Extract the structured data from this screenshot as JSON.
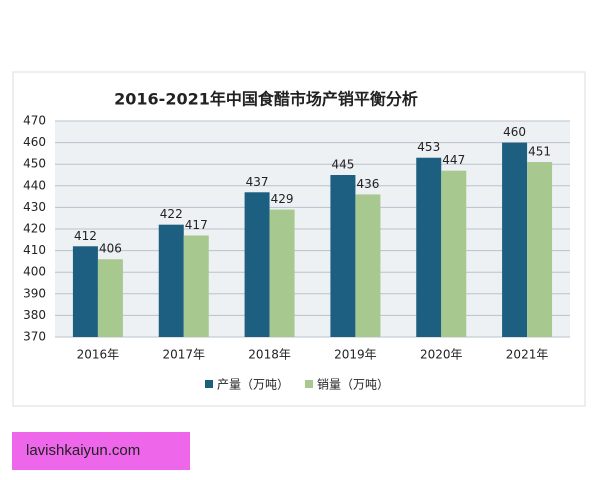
{
  "chart_data": {
    "type": "bar",
    "title": "2016-2021年中国食醋市场产销平衡分析",
    "categories": [
      "2016年",
      "2017年",
      "2018年",
      "2019年",
      "2020年",
      "2021年"
    ],
    "series": [
      {
        "name": "产量（万吨）",
        "color": "#1d5f80",
        "values": [
          412,
          422,
          437,
          445,
          453,
          460
        ]
      },
      {
        "name": "销量（万吨）",
        "color": "#a7c98f",
        "values": [
          406,
          417,
          429,
          436,
          447,
          451
        ]
      }
    ],
    "ylim": [
      370,
      470
    ],
    "yticks": [
      370,
      380,
      390,
      400,
      410,
      420,
      430,
      440,
      450,
      460,
      470
    ],
    "grid": true,
    "legend": "bottom"
  },
  "footer_tag": "lavishkaiyun.com"
}
